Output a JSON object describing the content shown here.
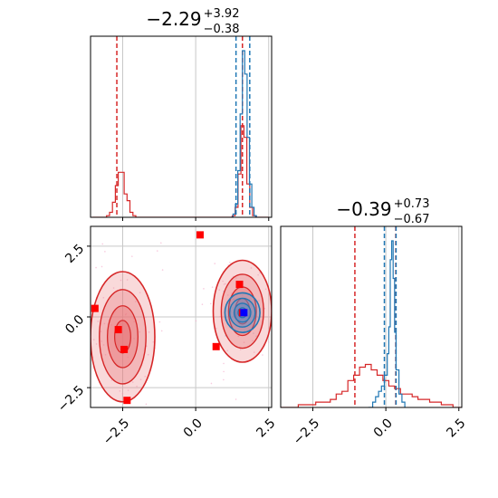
{
  "chart_data": [
    {
      "type": "histogram",
      "panel": "top-left marginal",
      "title": {
        "median": "−2.29",
        "upper": "+3.92",
        "lower": "−0.38"
      },
      "xlim": [
        -3.6,
        2.6
      ],
      "grid": true,
      "series": [
        {
          "color": "#d62728",
          "bins": [
            [
              -3.55,
              0
            ],
            [
              -3.45,
              0
            ],
            [
              -3.35,
              0
            ],
            [
              -3.25,
              0
            ],
            [
              -3.15,
              0
            ],
            [
              -3.05,
              1
            ],
            [
              -2.95,
              3
            ],
            [
              -2.85,
              9
            ],
            [
              -2.75,
              19
            ],
            [
              -2.65,
              27
            ],
            [
              -2.55,
              27
            ],
            [
              -2.45,
              14
            ],
            [
              -2.35,
              10
            ],
            [
              -2.25,
              3
            ],
            [
              -2.15,
              1
            ],
            [
              -2.05,
              0
            ],
            [
              -1.95,
              0
            ],
            [
              -1.85,
              0
            ],
            [
              -1.0,
              0
            ],
            [
              0.0,
              0
            ],
            [
              1.15,
              0
            ],
            [
              1.25,
              1
            ],
            [
              1.35,
              6
            ],
            [
              1.45,
              26
            ],
            [
              1.55,
              55
            ],
            [
              1.65,
              48
            ],
            [
              1.75,
              20
            ],
            [
              1.85,
              6
            ],
            [
              1.95,
              1
            ],
            [
              2.05,
              0
            ],
            [
              2.5,
              0
            ]
          ],
          "quantile_lines": [
            -2.7,
            1.6
          ]
        },
        {
          "color": "#1f77b4",
          "bins": [
            [
              1.2,
              0
            ],
            [
              1.28,
              2
            ],
            [
              1.36,
              8
            ],
            [
              1.44,
              28
            ],
            [
              1.52,
              62
            ],
            [
              1.6,
              100
            ],
            [
              1.68,
              86
            ],
            [
              1.76,
              48
            ],
            [
              1.84,
              20
            ],
            [
              1.92,
              6
            ],
            [
              2.0,
              1
            ],
            [
              2.08,
              0
            ]
          ],
          "quantile_lines": [
            1.38,
            1.85
          ]
        }
      ],
      "x_ticks": [
        "−2.5",
        "0.0",
        "2.5"
      ]
    },
    {
      "type": "histogram",
      "panel": "bottom-right marginal",
      "title": {
        "median": "−0.39",
        "upper": "+0.73",
        "lower": "−0.67"
      },
      "xlim": [
        -3.6,
        2.6
      ],
      "grid": true,
      "x_ticks": [
        "−2.5",
        "0.0",
        "2.5"
      ],
      "series": [
        {
          "color": "#d62728",
          "bins": [
            [
              -3.6,
              0
            ],
            [
              -3.3,
              0
            ],
            [
              -3.0,
              1
            ],
            [
              -2.7,
              1
            ],
            [
              -2.4,
              2
            ],
            [
              -2.1,
              2
            ],
            [
              -1.9,
              3
            ],
            [
              -1.7,
              5
            ],
            [
              -1.5,
              6
            ],
            [
              -1.3,
              10
            ],
            [
              -1.1,
              12
            ],
            [
              -0.9,
              15
            ],
            [
              -0.7,
              16
            ],
            [
              -0.5,
              14
            ],
            [
              -0.3,
              12
            ],
            [
              -0.1,
              10
            ],
            [
              0.1,
              8
            ],
            [
              0.3,
              7
            ],
            [
              0.5,
              5
            ],
            [
              0.7,
              5
            ],
            [
              0.9,
              4
            ],
            [
              1.1,
              3
            ],
            [
              1.3,
              3
            ],
            [
              1.5,
              2
            ],
            [
              1.7,
              2
            ],
            [
              1.9,
              1
            ],
            [
              2.1,
              1
            ],
            [
              2.3,
              0
            ],
            [
              2.6,
              0
            ]
          ],
          "quantile_lines": [
            -1.06,
            0.34
          ]
        },
        {
          "color": "#1f77b4",
          "bins": [
            [
              -0.6,
              0
            ],
            [
              -0.45,
              2
            ],
            [
              -0.35,
              4
            ],
            [
              -0.25,
              6
            ],
            [
              -0.15,
              8
            ],
            [
              -0.05,
              12
            ],
            [
              0.05,
              20
            ],
            [
              0.1,
              30
            ],
            [
              0.15,
              55
            ],
            [
              0.2,
              62
            ],
            [
              0.25,
              48
            ],
            [
              0.3,
              28
            ],
            [
              0.35,
              14
            ],
            [
              0.45,
              5
            ],
            [
              0.55,
              2
            ],
            [
              0.65,
              0
            ]
          ],
          "quantile_lines": [
            -0.05,
            0.35
          ]
        }
      ]
    },
    {
      "type": "contour",
      "panel": "bottom-left joint",
      "xlim": [
        -3.6,
        2.6
      ],
      "ylim": [
        -3.2,
        3.2
      ],
      "grid": true,
      "x_ticks": [
        "−2.5",
        "0.0",
        "2.5"
      ],
      "y_ticks": [
        "2.5",
        "0.0",
        "−2.5"
      ],
      "series": [
        {
          "name_shown": false,
          "color": "#d62728",
          "modes": [
            {
              "cx": -2.5,
              "cy": -0.7,
              "sx": 0.55,
              "sy": 1.15
            },
            {
              "cx": 1.6,
              "cy": 0.2,
              "sx": 0.5,
              "sy": 0.9
            }
          ],
          "markers": [
            [
              -3.45,
              0.3
            ],
            [
              -2.65,
              -0.45
            ],
            [
              -2.45,
              -1.15
            ],
            [
              -2.35,
              -2.95
            ],
            [
              0.15,
              2.9
            ],
            [
              0.7,
              -1.05
            ],
            [
              1.5,
              1.15
            ],
            [
              1.6,
              0.15
            ]
          ]
        },
        {
          "color": "#1f77b4",
          "modes": [
            {
              "cx": 1.6,
              "cy": 0.15,
              "sx": 0.3,
              "sy": 0.35
            }
          ],
          "markers": [
            [
              1.65,
              0.15
            ]
          ]
        }
      ]
    }
  ]
}
